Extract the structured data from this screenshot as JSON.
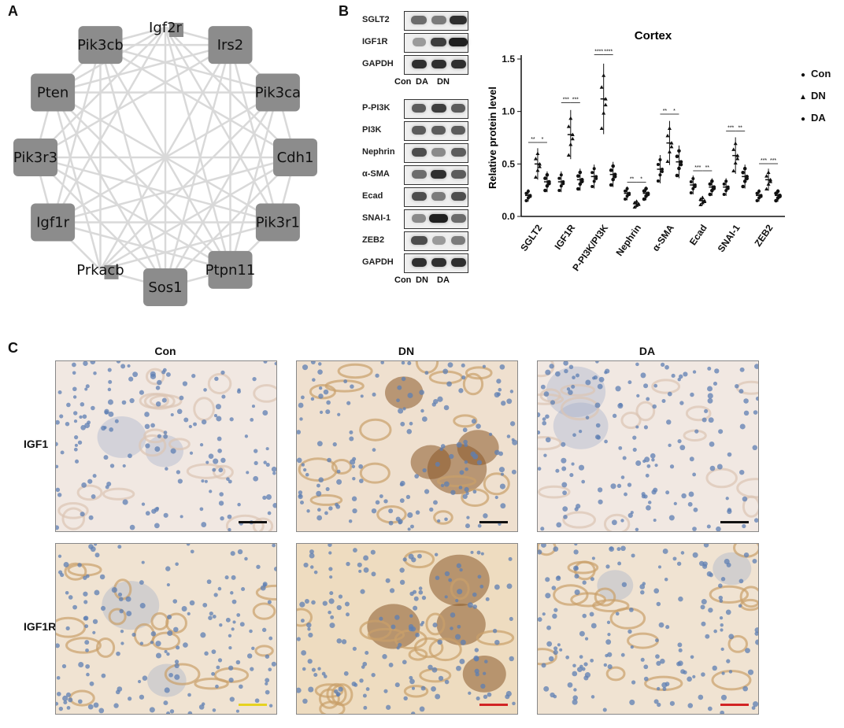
{
  "panels": {
    "a": "A",
    "b": "B",
    "c": "C"
  },
  "network": {
    "nodes": [
      {
        "label": "Igf2r",
        "box": false
      },
      {
        "label": "Irs2",
        "box": true
      },
      {
        "label": "Pik3ca",
        "box": true
      },
      {
        "label": "Cdh1",
        "box": true
      },
      {
        "label": "Pik3r1",
        "box": true
      },
      {
        "label": "Ptpn11",
        "box": true
      },
      {
        "label": "Sos1",
        "box": true
      },
      {
        "label": "Prkacb",
        "box": false
      },
      {
        "label": "Igf1r",
        "box": true
      },
      {
        "label": "Pik3r3",
        "box": true
      },
      {
        "label": "Pten",
        "box": true
      },
      {
        "label": "Pik3cb",
        "box": true
      }
    ]
  },
  "blots": {
    "group1": [
      "SGLT2",
      "IGF1R",
      "GAPDH"
    ],
    "group1_lanes": [
      "Con",
      "DA",
      "DN"
    ],
    "group2": [
      "P-PI3K",
      "PI3K",
      "Nephrin",
      "α-SMA",
      "Ecad",
      "SNAI-1",
      "ZEB2",
      "GAPDH"
    ],
    "group2_lanes": [
      "Con",
      "DN",
      "DA"
    ]
  },
  "chart_data": {
    "type": "scatter",
    "title": "Cortex",
    "ylabel": "Relative protein level",
    "xlabel": "",
    "ylim": [
      0,
      1.5
    ],
    "yticks": [
      "0.0",
      "0.5",
      "1.0",
      "1.5"
    ],
    "categories": [
      "SGLT2",
      "IGF1R",
      "P-PI3K/PI3K",
      "Nephrin",
      "α-SMA",
      "Ecad",
      "SNAI-1",
      "ZEB2"
    ],
    "series": [
      {
        "name": "Con",
        "values": [
          0.2,
          0.33,
          0.38,
          0.22,
          0.45,
          0.3,
          0.28,
          0.2
        ]
      },
      {
        "name": "DN",
        "values": [
          0.5,
          0.78,
          1.12,
          0.12,
          0.7,
          0.15,
          0.58,
          0.35
        ]
      },
      {
        "name": "DA",
        "values": [
          0.33,
          0.35,
          0.4,
          0.22,
          0.52,
          0.28,
          0.38,
          0.2
        ]
      }
    ],
    "significance": [
      "**",
      "*",
      "***",
      "***",
      "****",
      "****",
      "**",
      "*",
      "**",
      "*",
      "***",
      "**",
      "***",
      "**",
      "***",
      "***"
    ]
  },
  "legend": [
    {
      "name": "Con",
      "symbol": "●"
    },
    {
      "name": "DN",
      "symbol": "▲"
    },
    {
      "name": "DA",
      "symbol": "●"
    }
  ],
  "ihc": {
    "columns": [
      "Con",
      "DN",
      "DA"
    ],
    "rows": [
      "IGF1",
      "IGF1R"
    ]
  },
  "colors": {
    "node": "#8c8c8c",
    "edge": "#d9d9d9",
    "stain_blue": "#5d7fb3",
    "stain_brown": "#8a5a2a",
    "scale_black": "#111111",
    "scale_yellow": "#e6d21f",
    "scale_red": "#d22424"
  }
}
